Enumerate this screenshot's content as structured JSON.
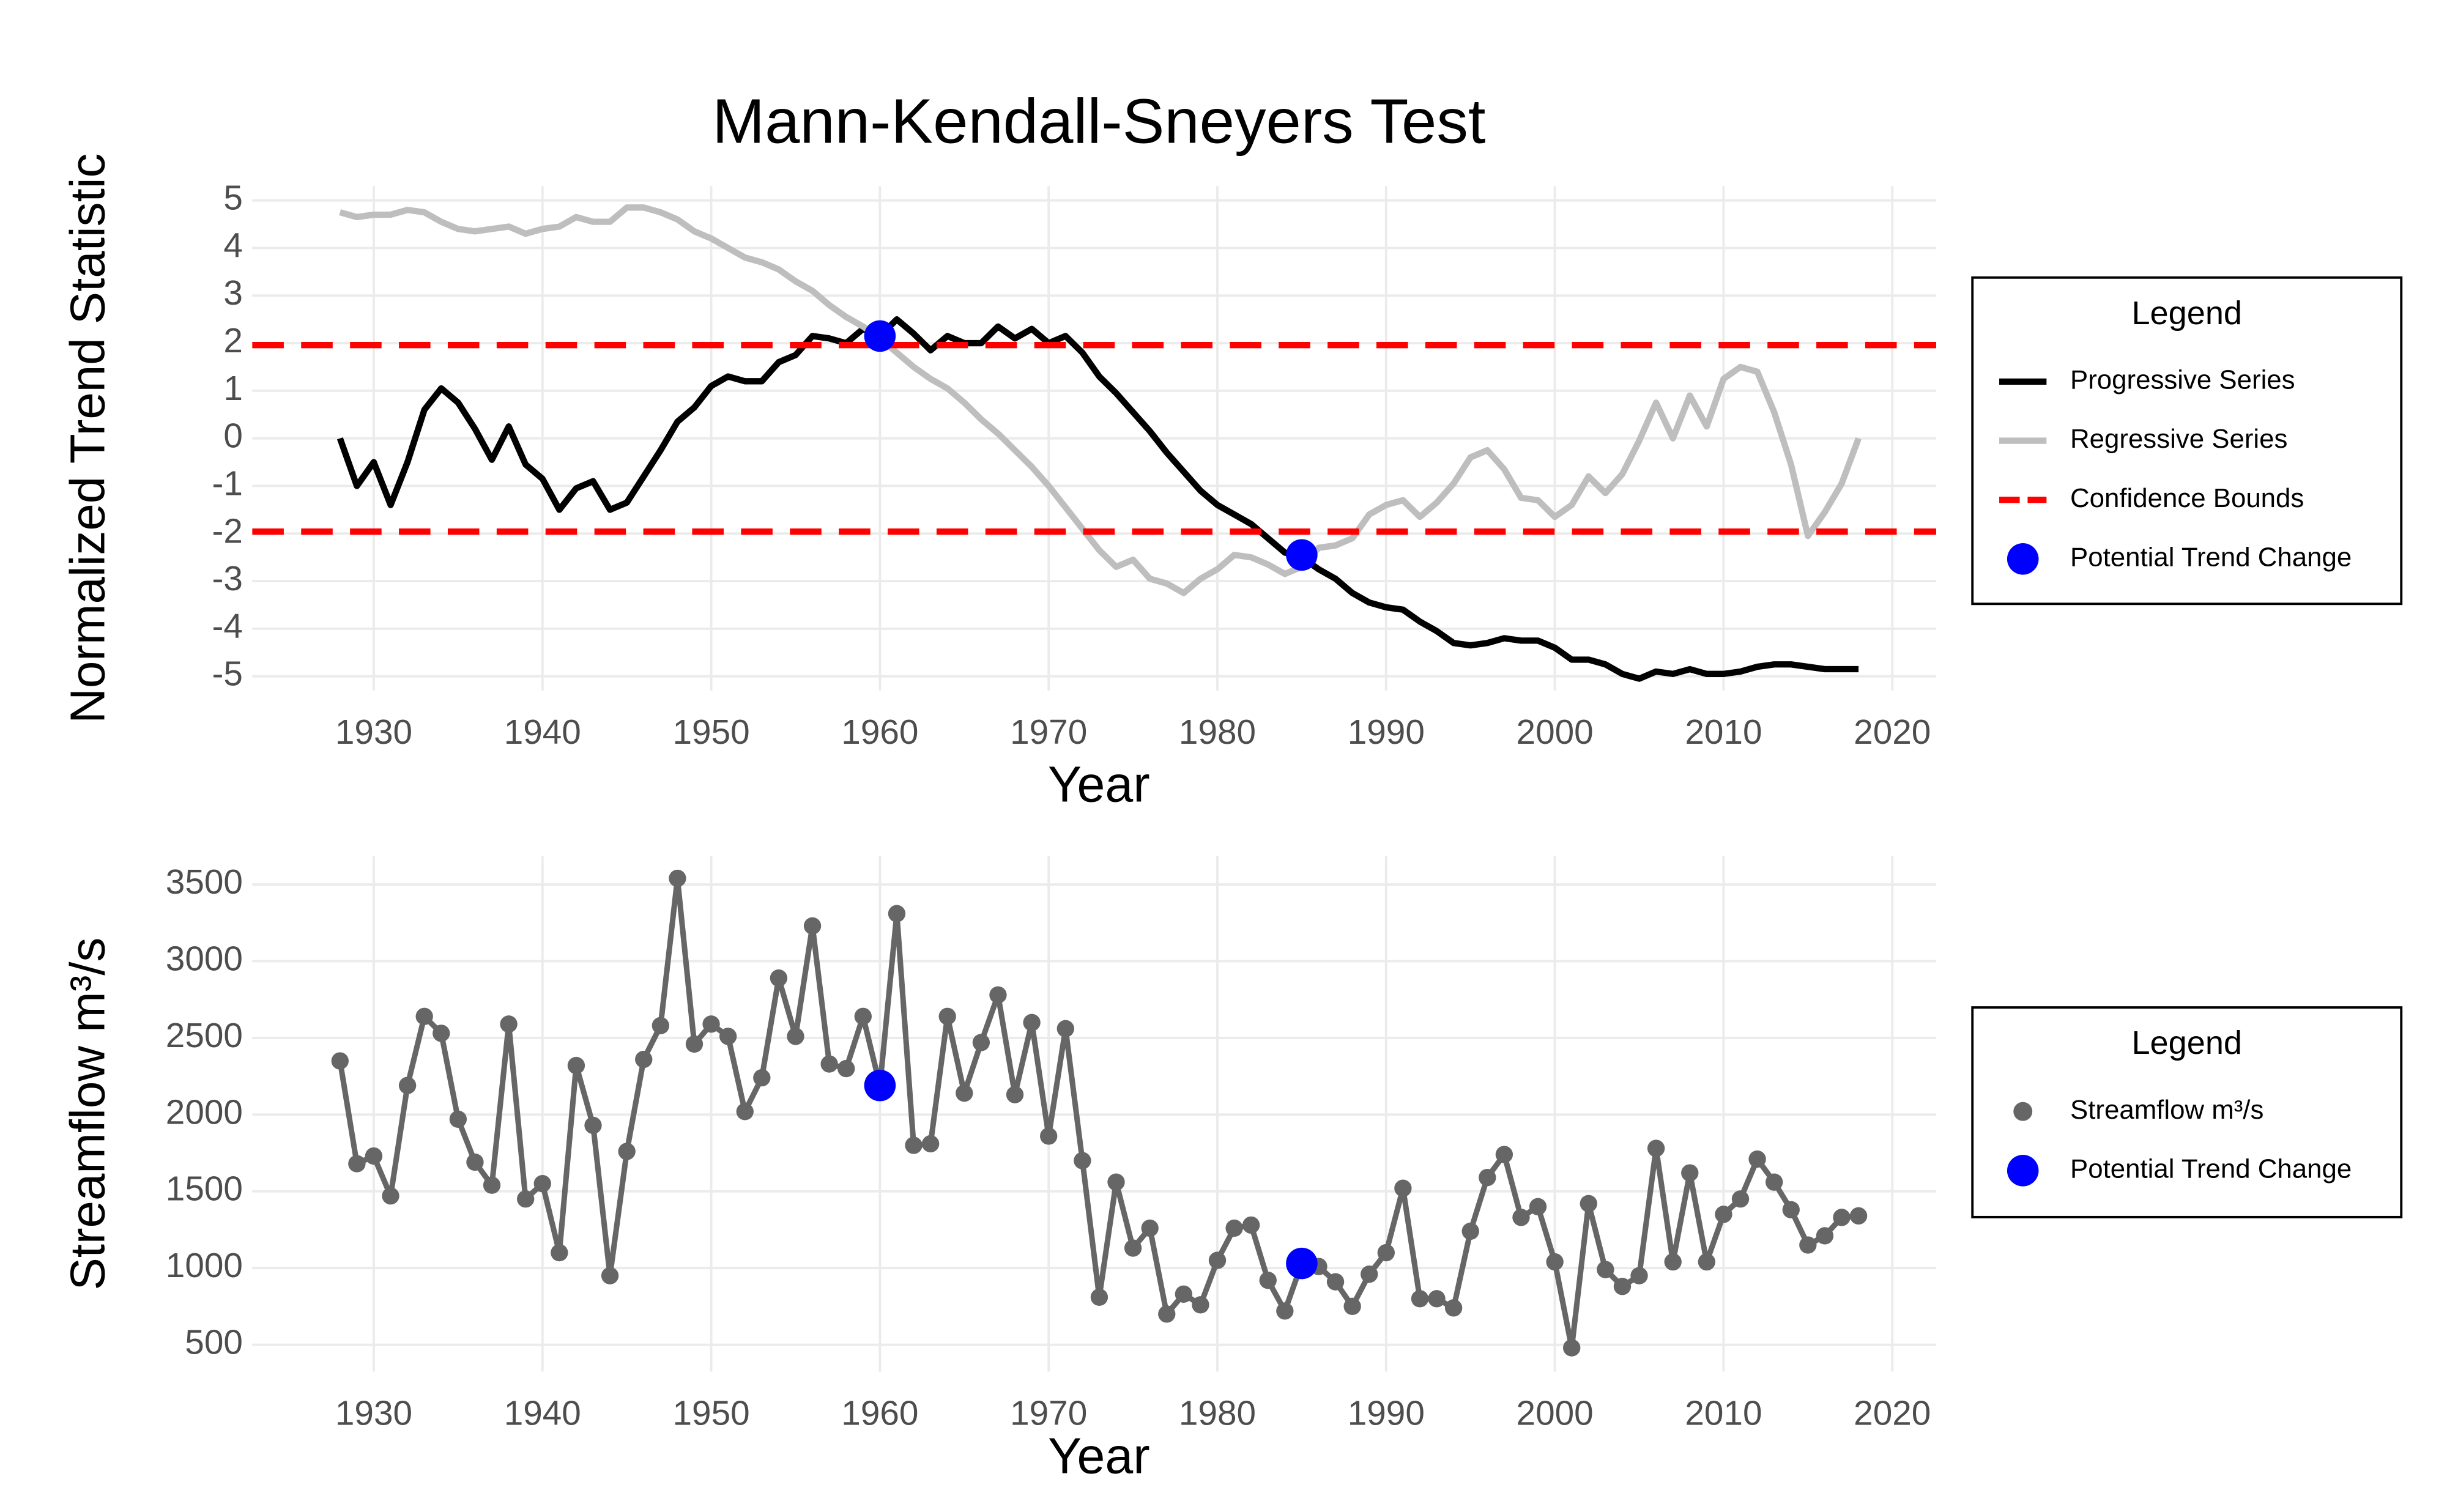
{
  "chart_data": [
    {
      "type": "line",
      "title": "Mann-Kendall-Sneyers Test",
      "x_label": "Year",
      "y_label": "Normalized Trend Statistic",
      "x": [
        1928,
        1929,
        1930,
        1931,
        1932,
        1933,
        1934,
        1935,
        1936,
        1937,
        1938,
        1939,
        1940,
        1941,
        1942,
        1943,
        1944,
        1945,
        1946,
        1947,
        1948,
        1949,
        1950,
        1951,
        1952,
        1953,
        1954,
        1955,
        1956,
        1957,
        1958,
        1959,
        1960,
        1961,
        1962,
        1963,
        1964,
        1965,
        1966,
        1967,
        1968,
        1969,
        1970,
        1971,
        1972,
        1973,
        1974,
        1975,
        1976,
        1977,
        1978,
        1979,
        1980,
        1981,
        1982,
        1983,
        1984,
        1985,
        1986,
        1987,
        1988,
        1989,
        1990,
        1991,
        1992,
        1993,
        1994,
        1995,
        1996,
        1997,
        1998,
        1999,
        2000,
        2001,
        2002,
        2003,
        2004,
        2005,
        2006,
        2007,
        2008,
        2009,
        2010,
        2011,
        2012,
        2013,
        2014,
        2015,
        2016,
        2017,
        2018
      ],
      "series": [
        {
          "name": "Progressive Series",
          "color": "#000000",
          "values": [
            0,
            -1.0,
            -0.5,
            -1.4,
            -0.5,
            0.6,
            1.05,
            0.75,
            0.2,
            -0.45,
            0.25,
            -0.55,
            -0.85,
            -1.5,
            -1.05,
            -0.9,
            -1.5,
            -1.35,
            -0.8,
            -0.25,
            0.35,
            0.65,
            1.1,
            1.3,
            1.2,
            1.2,
            1.6,
            1.75,
            2.15,
            2.1,
            2.0,
            2.3,
            2.15,
            2.5,
            2.2,
            1.85,
            2.15,
            2.0,
            2.0,
            2.35,
            2.1,
            2.3,
            2.0,
            2.15,
            1.8,
            1.3,
            0.95,
            0.55,
            0.15,
            -0.3,
            -0.7,
            -1.1,
            -1.4,
            -1.6,
            -1.8,
            -2.1,
            -2.4,
            -2.5,
            -2.75,
            -2.95,
            -3.25,
            -3.45,
            -3.55,
            -3.6,
            -3.85,
            -4.05,
            -4.3,
            -4.35,
            -4.3,
            -4.2,
            -4.25,
            -4.25,
            -4.4,
            -4.65,
            -4.65,
            -4.75,
            -4.95,
            -5.05,
            -4.9,
            -4.95,
            -4.85,
            -4.95,
            -4.95,
            -4.9,
            -4.8,
            -4.75,
            -4.75,
            -4.8,
            -4.85,
            -4.85,
            -4.85
          ]
        },
        {
          "name": "Regressive Series",
          "color": "#bebebe",
          "values": [
            4.75,
            4.65,
            4.7,
            4.7,
            4.8,
            4.75,
            4.55,
            4.4,
            4.35,
            4.4,
            4.45,
            4.3,
            4.4,
            4.45,
            4.65,
            4.55,
            4.55,
            4.85,
            4.85,
            4.75,
            4.6,
            4.35,
            4.2,
            4.0,
            3.8,
            3.7,
            3.55,
            3.3,
            3.1,
            2.8,
            2.55,
            2.35,
            2.1,
            1.8,
            1.5,
            1.25,
            1.05,
            0.75,
            0.4,
            0.1,
            -0.25,
            -0.6,
            -1.0,
            -1.45,
            -1.9,
            -2.35,
            -2.7,
            -2.55,
            -2.95,
            -3.05,
            -3.25,
            -2.95,
            -2.75,
            -2.45,
            -2.5,
            -2.65,
            -2.85,
            -2.7,
            -2.3,
            -2.25,
            -2.1,
            -1.6,
            -1.4,
            -1.3,
            -1.65,
            -1.35,
            -0.95,
            -0.4,
            -0.25,
            -0.65,
            -1.25,
            -1.3,
            -1.65,
            -1.4,
            -0.8,
            -1.15,
            -0.75,
            -0.05,
            0.75,
            0.0,
            0.9,
            0.25,
            1.25,
            1.5,
            1.4,
            0.55,
            -0.55,
            -2.05,
            -1.55,
            -0.95,
            0.0
          ]
        }
      ],
      "confidence_bounds": {
        "name": "Confidence Bounds",
        "color": "#ff0000",
        "values": [
          1.96,
          -1.96
        ]
      },
      "trend_change": {
        "name": "Potential Trend Change",
        "color": "#0000ff",
        "x": [
          1960,
          1985
        ],
        "values": [
          2.15,
          -2.45
        ]
      },
      "legend_title": "Legend",
      "xlim": [
        1922.8,
        2022.6
      ],
      "xticks": [
        1930,
        1940,
        1950,
        1960,
        1970,
        1980,
        1990,
        2000,
        2010,
        2020
      ],
      "ylim": [
        -5.3,
        5.3
      ],
      "yticks": [
        -5,
        -4,
        -3,
        -2,
        -1,
        0,
        1,
        2,
        3,
        4,
        5
      ],
      "grid": true
    },
    {
      "type": "line",
      "x_label": "Year",
      "y_label": "Streamflow m³/s",
      "x": [
        1928,
        1929,
        1930,
        1931,
        1932,
        1933,
        1934,
        1935,
        1936,
        1937,
        1938,
        1939,
        1940,
        1941,
        1942,
        1943,
        1944,
        1945,
        1946,
        1947,
        1948,
        1949,
        1950,
        1951,
        1952,
        1953,
        1954,
        1955,
        1956,
        1957,
        1958,
        1959,
        1960,
        1961,
        1962,
        1963,
        1964,
        1965,
        1966,
        1967,
        1968,
        1969,
        1970,
        1971,
        1972,
        1973,
        1974,
        1975,
        1976,
        1977,
        1978,
        1979,
        1980,
        1981,
        1982,
        1983,
        1984,
        1985,
        1986,
        1987,
        1988,
        1989,
        1990,
        1991,
        1992,
        1993,
        1994,
        1995,
        1996,
        1997,
        1998,
        1999,
        2000,
        2001,
        2002,
        2003,
        2004,
        2005,
        2006,
        2007,
        2008,
        2009,
        2010,
        2011,
        2012,
        2013,
        2014,
        2015,
        2016,
        2017,
        2018
      ],
      "series": [
        {
          "name": "Streamflow m³/s",
          "color": "#666666",
          "markers": true,
          "values": [
            2350,
            1680,
            1730,
            1470,
            2190,
            2640,
            2530,
            1970,
            1690,
            1540,
            2590,
            1450,
            1550,
            1100,
            2320,
            1930,
            950,
            1760,
            2360,
            2580,
            3540,
            2460,
            2590,
            2510,
            2020,
            2240,
            2890,
            2510,
            3230,
            2330,
            2300,
            2640,
            2190,
            3310,
            1800,
            1810,
            2640,
            2140,
            2470,
            2780,
            2130,
            2600,
            1860,
            2560,
            1700,
            810,
            1560,
            1130,
            1260,
            700,
            830,
            760,
            1050,
            1260,
            1280,
            920,
            720,
            1030,
            1010,
            910,
            750,
            960,
            1100,
            1520,
            800,
            800,
            740,
            1240,
            1590,
            1740,
            1330,
            1400,
            1040,
            480,
            1420,
            990,
            880,
            950,
            1780,
            1040,
            1620,
            1040,
            1350,
            1450,
            1710,
            1560,
            1380,
            1150,
            1210,
            1330,
            1340
          ]
        }
      ],
      "trend_change": {
        "name": "Potential Trend Change",
        "color": "#0000ff",
        "x": [
          1960,
          1985
        ],
        "values": [
          2190,
          1030
        ]
      },
      "legend_title": "Legend",
      "xlim": [
        1922.8,
        2022.6
      ],
      "xticks": [
        1930,
        1940,
        1950,
        1960,
        1970,
        1980,
        1990,
        2000,
        2010,
        2020
      ],
      "ylim": [
        325,
        3685
      ],
      "yticks": [
        500,
        1000,
        1500,
        2000,
        2500,
        3000,
        3500
      ],
      "grid": true
    }
  ]
}
